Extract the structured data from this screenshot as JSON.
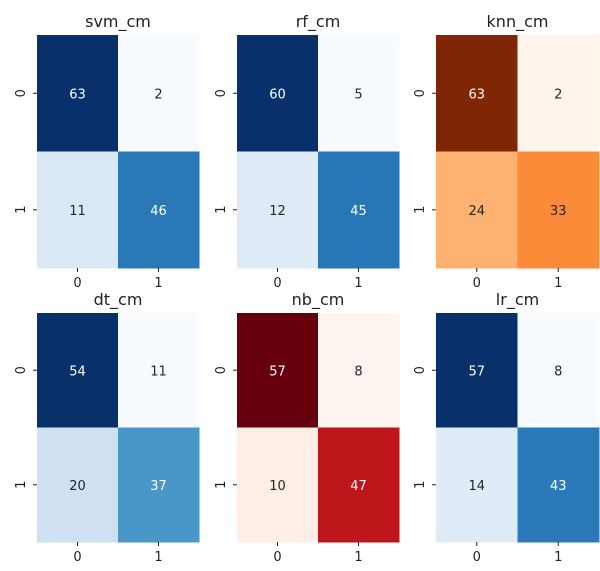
{
  "colors": {
    "Blues": [
      "#f7fbff",
      "#deebf7",
      "#c6dbef",
      "#9ecae1",
      "#6baed6",
      "#4292c6",
      "#2171b5",
      "#08519c",
      "#08306b"
    ],
    "Oranges": [
      "#fff5eb",
      "#fee6ce",
      "#fdd0a2",
      "#fdae6b",
      "#fd8d3c",
      "#f16913",
      "#d94801",
      "#a63603",
      "#7f2704"
    ],
    "Reds": [
      "#fff5f0",
      "#fee0d2",
      "#fcbba1",
      "#fc9272",
      "#fb6a4a",
      "#ef3b2c",
      "#cb181d",
      "#a50f15",
      "#67000d"
    ]
  },
  "chart_data": [
    {
      "type": "heatmap",
      "title": "svm_cm",
      "colormap": "Blues",
      "x_ticks": [
        "0",
        "1"
      ],
      "y_ticks": [
        "0",
        "1"
      ],
      "values": [
        [
          63,
          2
        ],
        [
          11,
          46
        ]
      ]
    },
    {
      "type": "heatmap",
      "title": "rf_cm",
      "colormap": "Blues",
      "x_ticks": [
        "0",
        "1"
      ],
      "y_ticks": [
        "0",
        "1"
      ],
      "values": [
        [
          60,
          5
        ],
        [
          12,
          45
        ]
      ]
    },
    {
      "type": "heatmap",
      "title": "knn_cm",
      "colormap": "Oranges",
      "x_ticks": [
        "0",
        "1"
      ],
      "y_ticks": [
        "0",
        "1"
      ],
      "values": [
        [
          63,
          2
        ],
        [
          24,
          33
        ]
      ]
    },
    {
      "type": "heatmap",
      "title": "dt_cm",
      "colormap": "Blues",
      "x_ticks": [
        "0",
        "1"
      ],
      "y_ticks": [
        "0",
        "1"
      ],
      "values": [
        [
          54,
          11
        ],
        [
          20,
          37
        ]
      ]
    },
    {
      "type": "heatmap",
      "title": "nb_cm",
      "colormap": "Reds",
      "x_ticks": [
        "0",
        "1"
      ],
      "y_ticks": [
        "0",
        "1"
      ],
      "values": [
        [
          57,
          8
        ],
        [
          10,
          47
        ]
      ]
    },
    {
      "type": "heatmap",
      "title": "lr_cm",
      "colormap": "Blues",
      "x_ticks": [
        "0",
        "1"
      ],
      "y_ticks": [
        "0",
        "1"
      ],
      "values": [
        [
          57,
          8
        ],
        [
          14,
          43
        ]
      ]
    }
  ]
}
